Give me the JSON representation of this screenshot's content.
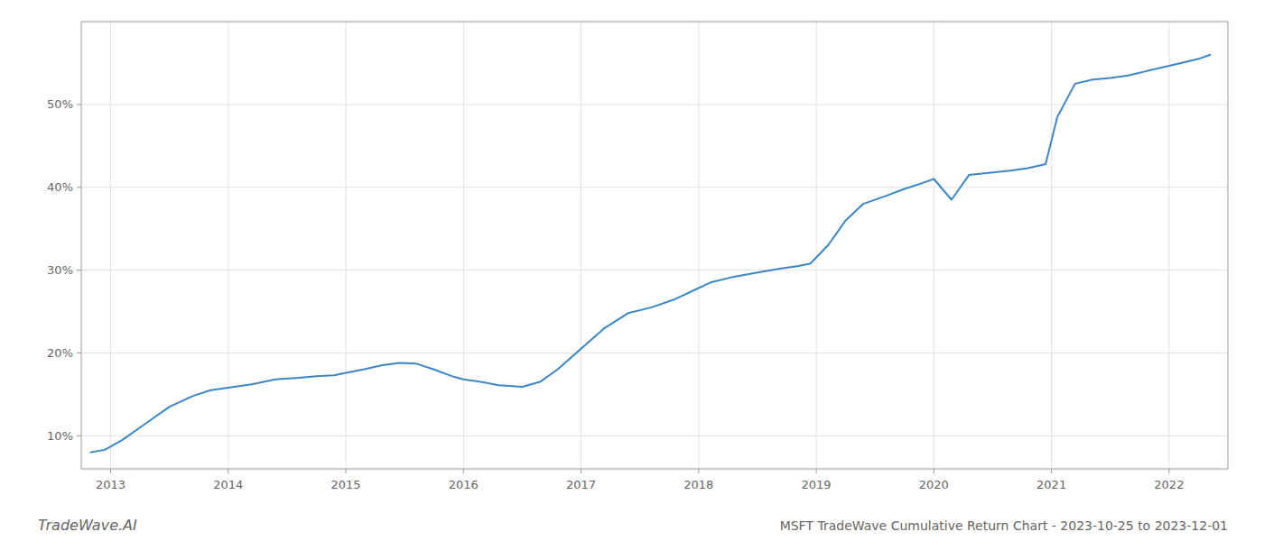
{
  "chart_data": {
    "type": "line",
    "title": "MSFT TradeWave Cumulative Return Chart - 2023-10-25 to 2023-12-01",
    "annotations": [
      "TradeWave.AI"
    ],
    "x": [
      2012.83,
      2012.95,
      2013.1,
      2013.3,
      2013.5,
      2013.7,
      2013.85,
      2014.0,
      2014.2,
      2014.4,
      2014.6,
      2014.75,
      2014.9,
      2015.0,
      2015.15,
      2015.3,
      2015.45,
      2015.6,
      2015.75,
      2015.9,
      2016.0,
      2016.15,
      2016.3,
      2016.5,
      2016.65,
      2016.8,
      2017.0,
      2017.2,
      2017.4,
      2017.6,
      2017.8,
      2017.95,
      2018.1,
      2018.3,
      2018.5,
      2018.7,
      2018.85,
      2018.95,
      2019.1,
      2019.25,
      2019.4,
      2019.6,
      2019.75,
      2019.9,
      2020.0,
      2020.15,
      2020.3,
      2020.5,
      2020.65,
      2020.8,
      2020.95,
      2021.05,
      2021.2,
      2021.35,
      2021.5,
      2021.65,
      2021.8,
      2021.95,
      2022.1,
      2022.25,
      2022.35
    ],
    "values": [
      8.0,
      8.3,
      9.5,
      11.5,
      13.5,
      14.8,
      15.5,
      15.8,
      16.2,
      16.8,
      17.0,
      17.2,
      17.3,
      17.6,
      18.0,
      18.5,
      18.8,
      18.7,
      18.0,
      17.2,
      16.8,
      16.5,
      16.1,
      15.9,
      16.5,
      18.0,
      20.5,
      23.0,
      24.8,
      25.5,
      26.5,
      27.5,
      28.5,
      29.2,
      29.7,
      30.2,
      30.5,
      30.8,
      33.0,
      36.0,
      38.0,
      39.0,
      39.8,
      40.5,
      41.0,
      38.5,
      41.5,
      41.8,
      42.0,
      42.3,
      42.8,
      48.5,
      52.5,
      53.0,
      53.2,
      53.5,
      54.0,
      54.5,
      55.0,
      55.5,
      56.0
    ],
    "color": "#3a86c8",
    "xlim": [
      2012.75,
      2022.5
    ],
    "ylim": [
      6,
      60
    ],
    "xticks": [
      2013,
      2014,
      2015,
      2016,
      2017,
      2018,
      2019,
      2020,
      2021,
      2022
    ],
    "yticks": [
      {
        "value": 10,
        "label": "10%"
      },
      {
        "value": 20,
        "label": "20%"
      },
      {
        "value": 30,
        "label": "30%"
      },
      {
        "value": 40,
        "label": "40%"
      },
      {
        "value": 50,
        "label": "50%"
      }
    ],
    "grid": true
  }
}
